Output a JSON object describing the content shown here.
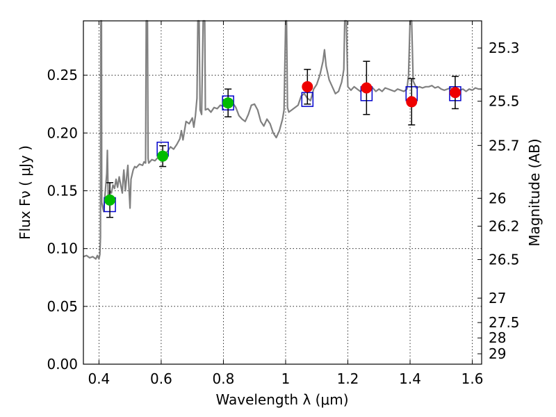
{
  "chart_data": {
    "type": "scatter",
    "title": "",
    "xlabel": "Wavelength  λ (μm)",
    "ylabel": "Flux  Fν  ( μJy )",
    "y2label": "Magnitude (AB)",
    "xlim": [
      0.35,
      1.63
    ],
    "ylim": [
      0.0,
      0.297
    ],
    "x_ticks": [
      0.4,
      0.6,
      0.8,
      1.0,
      1.2,
      1.4,
      1.6
    ],
    "x_tick_labels": [
      "0.4",
      "0.6",
      "0.8",
      "1",
      "1.2",
      "1.4",
      "1.6"
    ],
    "y_ticks": [
      0.0,
      0.05,
      0.1,
      0.15,
      0.2,
      0.25
    ],
    "y_tick_labels": [
      "0.00",
      "0.05",
      "0.10",
      "0.15",
      "0.20",
      "0.25"
    ],
    "mag_ticks": [
      {
        "label": "25.3",
        "flux": 0.2735
      },
      {
        "label": "25.5",
        "flux": 0.2275
      },
      {
        "label": "25.7",
        "flux": 0.1892
      },
      {
        "label": "26",
        "flux": 0.1435
      },
      {
        "label": "26.2",
        "flux": 0.1194
      },
      {
        "label": "26.5",
        "flux": 0.0905
      },
      {
        "label": "27",
        "flux": 0.0571
      },
      {
        "label": "27.5",
        "flux": 0.036
      },
      {
        "label": "28",
        "flux": 0.0227
      },
      {
        "label": "29",
        "flux": 0.009
      }
    ],
    "grid": true,
    "colors": {
      "spectrum": "#808080",
      "model_box": "#0000cc",
      "green_point": "#00bb00",
      "red_point": "#ee0000",
      "errorbar": "#000000"
    },
    "spectrum": [
      [
        0.35,
        0.093
      ],
      [
        0.36,
        0.094
      ],
      [
        0.37,
        0.092
      ],
      [
        0.38,
        0.093
      ],
      [
        0.39,
        0.091
      ],
      [
        0.395,
        0.094
      ],
      [
        0.4,
        0.091
      ],
      [
        0.403,
        0.095
      ],
      [
        0.405,
        0.11
      ],
      [
        0.406,
        0.297
      ],
      [
        0.408,
        0.297
      ],
      [
        0.409,
        0.14
      ],
      [
        0.415,
        0.132
      ],
      [
        0.42,
        0.148
      ],
      [
        0.425,
        0.165
      ],
      [
        0.427,
        0.185
      ],
      [
        0.43,
        0.14
      ],
      [
        0.435,
        0.15
      ],
      [
        0.44,
        0.148
      ],
      [
        0.445,
        0.155
      ],
      [
        0.45,
        0.152
      ],
      [
        0.455,
        0.16
      ],
      [
        0.46,
        0.153
      ],
      [
        0.465,
        0.162
      ],
      [
        0.47,
        0.155
      ],
      [
        0.475,
        0.148
      ],
      [
        0.478,
        0.162
      ],
      [
        0.48,
        0.168
      ],
      [
        0.485,
        0.15
      ],
      [
        0.49,
        0.165
      ],
      [
        0.493,
        0.172
      ],
      [
        0.495,
        0.16
      ],
      [
        0.5,
        0.135
      ],
      [
        0.503,
        0.16
      ],
      [
        0.51,
        0.168
      ],
      [
        0.515,
        0.171
      ],
      [
        0.52,
        0.17
      ],
      [
        0.53,
        0.173
      ],
      [
        0.54,
        0.172
      ],
      [
        0.545,
        0.175
      ],
      [
        0.55,
        0.174
      ],
      [
        0.552,
        0.297
      ],
      [
        0.556,
        0.297
      ],
      [
        0.558,
        0.178
      ],
      [
        0.56,
        0.174
      ],
      [
        0.57,
        0.177
      ],
      [
        0.58,
        0.176
      ],
      [
        0.59,
        0.179
      ],
      [
        0.6,
        0.18
      ],
      [
        0.61,
        0.182
      ],
      [
        0.62,
        0.184
      ],
      [
        0.63,
        0.188
      ],
      [
        0.64,
        0.186
      ],
      [
        0.65,
        0.19
      ],
      [
        0.66,
        0.195
      ],
      [
        0.665,
        0.202
      ],
      [
        0.67,
        0.194
      ],
      [
        0.68,
        0.21
      ],
      [
        0.69,
        0.208
      ],
      [
        0.7,
        0.213
      ],
      [
        0.705,
        0.205
      ],
      [
        0.71,
        0.215
      ],
      [
        0.715,
        0.23
      ],
      [
        0.718,
        0.297
      ],
      [
        0.722,
        0.297
      ],
      [
        0.725,
        0.22
      ],
      [
        0.73,
        0.216
      ],
      [
        0.735,
        0.297
      ],
      [
        0.74,
        0.297
      ],
      [
        0.742,
        0.22
      ],
      [
        0.75,
        0.221
      ],
      [
        0.76,
        0.218
      ],
      [
        0.77,
        0.222
      ],
      [
        0.78,
        0.221
      ],
      [
        0.79,
        0.224
      ],
      [
        0.8,
        0.223
      ],
      [
        0.81,
        0.226
      ],
      [
        0.82,
        0.224
      ],
      [
        0.83,
        0.226
      ],
      [
        0.84,
        0.222
      ],
      [
        0.85,
        0.215
      ],
      [
        0.86,
        0.212
      ],
      [
        0.87,
        0.21
      ],
      [
        0.88,
        0.216
      ],
      [
        0.89,
        0.224
      ],
      [
        0.9,
        0.225
      ],
      [
        0.91,
        0.22
      ],
      [
        0.92,
        0.21
      ],
      [
        0.93,
        0.206
      ],
      [
        0.94,
        0.212
      ],
      [
        0.95,
        0.208
      ],
      [
        0.96,
        0.2
      ],
      [
        0.97,
        0.196
      ],
      [
        0.98,
        0.202
      ],
      [
        0.99,
        0.212
      ],
      [
        0.995,
        0.22
      ],
      [
        1.0,
        0.297
      ],
      [
        1.003,
        0.297
      ],
      [
        1.006,
        0.222
      ],
      [
        1.01,
        0.218
      ],
      [
        1.02,
        0.22
      ],
      [
        1.03,
        0.222
      ],
      [
        1.04,
        0.224
      ],
      [
        1.05,
        0.232
      ],
      [
        1.06,
        0.234
      ],
      [
        1.07,
        0.23
      ],
      [
        1.08,
        0.228
      ],
      [
        1.09,
        0.238
      ],
      [
        1.1,
        0.242
      ],
      [
        1.11,
        0.25
      ],
      [
        1.12,
        0.262
      ],
      [
        1.125,
        0.272
      ],
      [
        1.13,
        0.258
      ],
      [
        1.14,
        0.246
      ],
      [
        1.15,
        0.24
      ],
      [
        1.16,
        0.234
      ],
      [
        1.17,
        0.236
      ],
      [
        1.18,
        0.244
      ],
      [
        1.187,
        0.255
      ],
      [
        1.19,
        0.297
      ],
      [
        1.195,
        0.297
      ],
      [
        1.2,
        0.24
      ],
      [
        1.21,
        0.237
      ],
      [
        1.22,
        0.24
      ],
      [
        1.23,
        0.238
      ],
      [
        1.24,
        0.236
      ],
      [
        1.25,
        0.238
      ],
      [
        1.26,
        0.24
      ],
      [
        1.27,
        0.237
      ],
      [
        1.28,
        0.239
      ],
      [
        1.29,
        0.236
      ],
      [
        1.3,
        0.238
      ],
      [
        1.31,
        0.236
      ],
      [
        1.32,
        0.239
      ],
      [
        1.33,
        0.238
      ],
      [
        1.34,
        0.237
      ],
      [
        1.35,
        0.236
      ],
      [
        1.36,
        0.238
      ],
      [
        1.37,
        0.237
      ],
      [
        1.38,
        0.236
      ],
      [
        1.39,
        0.238
      ],
      [
        1.395,
        0.25
      ],
      [
        1.4,
        0.297
      ],
      [
        1.405,
        0.297
      ],
      [
        1.41,
        0.245
      ],
      [
        1.42,
        0.239
      ],
      [
        1.43,
        0.24
      ],
      [
        1.44,
        0.239
      ],
      [
        1.45,
        0.24
      ],
      [
        1.46,
        0.24
      ],
      [
        1.47,
        0.241
      ],
      [
        1.48,
        0.239
      ],
      [
        1.49,
        0.24
      ],
      [
        1.5,
        0.238
      ],
      [
        1.51,
        0.237
      ],
      [
        1.52,
        0.238
      ],
      [
        1.53,
        0.239
      ],
      [
        1.54,
        0.236
      ],
      [
        1.55,
        0.238
      ],
      [
        1.56,
        0.237
      ],
      [
        1.57,
        0.238
      ],
      [
        1.58,
        0.236
      ],
      [
        1.59,
        0.238
      ],
      [
        1.6,
        0.237
      ],
      [
        1.61,
        0.239
      ],
      [
        1.62,
        0.238
      ],
      [
        1.63,
        0.238
      ]
    ],
    "model_boxes": [
      {
        "x": 0.435,
        "y": 0.138
      },
      {
        "x": 0.605,
        "y": 0.186
      },
      {
        "x": 0.815,
        "y": 0.226
      },
      {
        "x": 1.07,
        "y": 0.229
      },
      {
        "x": 1.26,
        "y": 0.234
      },
      {
        "x": 1.405,
        "y": 0.234
      },
      {
        "x": 1.545,
        "y": 0.234
      }
    ],
    "points": [
      {
        "x": 0.435,
        "y": 0.142,
        "err": 0.015,
        "color": "green"
      },
      {
        "x": 0.605,
        "y": 0.18,
        "err": 0.009,
        "color": "green"
      },
      {
        "x": 0.815,
        "y": 0.226,
        "err": 0.012,
        "color": "green"
      },
      {
        "x": 1.07,
        "y": 0.24,
        "err": 0.015,
        "color": "red"
      },
      {
        "x": 1.26,
        "y": 0.239,
        "err": 0.023,
        "color": "red"
      },
      {
        "x": 1.405,
        "y": 0.227,
        "err": 0.02,
        "color": "red"
      },
      {
        "x": 1.545,
        "y": 0.235,
        "err": 0.014,
        "color": "red"
      }
    ]
  }
}
